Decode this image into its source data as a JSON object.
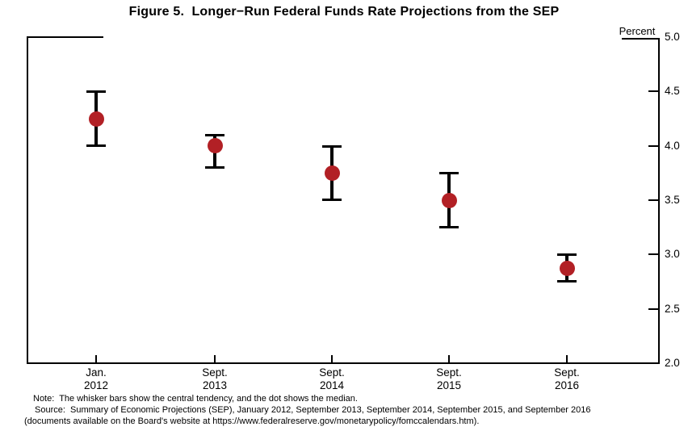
{
  "figure": {
    "title": "Figure 5.  Longer−Run Federal Funds Rate Projections from the SEP",
    "unit_label": "Percent"
  },
  "notes": {
    "line1": "Note:  The whisker bars show the central tendency, and the dot shows the median.",
    "line2": "Source:  Summary of Economic Projections (SEP), January 2012, September 2013, September 2014, September 2015, and September 2016",
    "line3": "(documents available on the Board's website at https://www.federalreserve.gov/monetarypolicy/fomccalendars.htm)."
  },
  "chart_data": {
    "type": "scatter",
    "subtype": "median-dot-with-central-tendency-whiskers",
    "title": "Figure 5.  Longer−Run Federal Funds Rate Projections from the SEP",
    "ylabel": "Percent",
    "ylim": [
      2.0,
      5.0
    ],
    "ytick_values": [
      5.0,
      4.5,
      4.0,
      3.5,
      3.0,
      2.5,
      2.0
    ],
    "ytick_labels": [
      "5.0",
      "4.5",
      "4.0",
      "3.5",
      "3.0",
      "2.5",
      "2.0"
    ],
    "grid": false,
    "legend": "none",
    "marker_color": "#b22025",
    "line_color": "#000000",
    "categories": [
      "Jan. 2012",
      "Sept. 2013",
      "Sept. 2014",
      "Sept. 2015",
      "Sept. 2016"
    ],
    "category_label_lines": [
      [
        "Jan.",
        "2012"
      ],
      [
        "Sept.",
        "2013"
      ],
      [
        "Sept.",
        "2014"
      ],
      [
        "Sept.",
        "2015"
      ],
      [
        "Sept.",
        "2016"
      ]
    ],
    "series": [
      {
        "name": "Median (dot)",
        "values": [
          4.25,
          4.0,
          3.75,
          3.5,
          2.87
        ]
      },
      {
        "name": "Central tendency low (whisker bottom)",
        "values": [
          4.0,
          3.8,
          3.5,
          3.25,
          2.75
        ]
      },
      {
        "name": "Central tendency high (whisker top)",
        "values": [
          4.5,
          4.1,
          4.0,
          3.75,
          3.0
        ]
      }
    ]
  }
}
